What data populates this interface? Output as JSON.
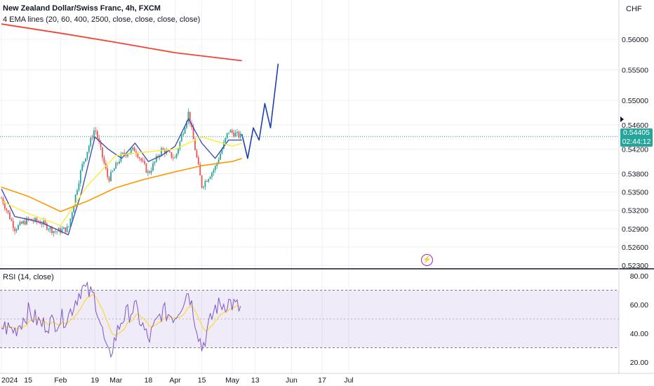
{
  "header": {
    "title": "New Zealand Dollar/Swiss Franc, 4h, FXCM",
    "indicator": "4 EMA lines (20, 60, 400, 2500, close, close, close, close)"
  },
  "currency": "CHF",
  "rsi_title": "RSI (14, close)",
  "price_tag": {
    "price": "0.54405",
    "countdown": "02:44:12",
    "color": "#26a69a"
  },
  "colors": {
    "up": "#26a69a",
    "down": "#ef5350",
    "ema20": "#3f51b5",
    "ema60": "#ffeb3b",
    "ema400": "#ff9800",
    "ema2500": "#f44336",
    "projection": "#1e40af",
    "rsi": "#7e57c2"
  },
  "icon": "lightning-icon",
  "chart_data": [
    {
      "type": "line",
      "name": "price-panel",
      "y_ticks": [
        "0.56000",
        "0.55500",
        "0.55000",
        "0.54600",
        "0.54200",
        "0.53800",
        "0.53500",
        "0.53200",
        "0.52900",
        "0.52600",
        "0.52300"
      ],
      "x_ticks": [
        "2024",
        "15",
        "Feb",
        "19",
        "Mar",
        "18",
        "Apr",
        "15",
        "May",
        "13",
        "Jun",
        "17",
        "Jul"
      ],
      "series": [
        {
          "name": "EMA 20",
          "x": [
            "2024-01-01",
            "2024-01-08",
            "2024-01-15",
            "2024-01-22",
            "2024-01-29",
            "2024-02-05",
            "2024-02-12",
            "2024-02-19",
            "2024-02-26",
            "2024-03-04",
            "2024-03-11",
            "2024-03-18",
            "2024-03-25",
            "2024-04-01",
            "2024-04-08",
            "2024-04-15",
            "2024-04-22",
            "2024-04-29",
            "2024-05-06"
          ],
          "values": [
            0.5355,
            0.531,
            0.5305,
            0.53,
            0.529,
            0.528,
            0.535,
            0.544,
            0.542,
            0.5405,
            0.543,
            0.54,
            0.541,
            0.5425,
            0.547,
            0.543,
            0.5405,
            0.5435,
            0.5435
          ]
        },
        {
          "name": "EMA 60",
          "x": [
            "2024-01-01",
            "2024-01-15",
            "2024-02-01",
            "2024-02-15",
            "2024-03-01",
            "2024-03-15",
            "2024-04-01",
            "2024-04-15",
            "2024-05-01",
            "2024-05-06"
          ],
          "values": [
            0.5335,
            0.5315,
            0.5295,
            0.536,
            0.541,
            0.5415,
            0.542,
            0.544,
            0.5425,
            0.543
          ]
        },
        {
          "name": "EMA 400",
          "x": [
            "2024-01-01",
            "2024-01-15",
            "2024-02-01",
            "2024-02-15",
            "2024-03-01",
            "2024-03-15",
            "2024-04-01",
            "2024-04-15",
            "2024-05-01",
            "2024-05-06"
          ],
          "values": [
            0.5358,
            0.5343,
            0.5318,
            0.5335,
            0.5357,
            0.537,
            0.5383,
            0.5393,
            0.54,
            0.5405
          ]
        },
        {
          "name": "EMA 2500",
          "x": [
            "2024-01-01",
            "2024-02-01",
            "2024-03-01",
            "2024-04-01",
            "2024-05-06"
          ],
          "values": [
            0.5625,
            0.561,
            0.5595,
            0.5578,
            0.5565
          ]
        },
        {
          "name": "Projection",
          "x": [
            "2024-05-06",
            "2024-05-09",
            "2024-05-12",
            "2024-05-15",
            "2024-05-18",
            "2024-05-21",
            "2024-05-25"
          ],
          "values": [
            0.5445,
            0.5405,
            0.5455,
            0.5435,
            0.5495,
            0.5455,
            0.556
          ]
        }
      ],
      "candles_approx": {
        "x": [
          "2024-01-01",
          "2024-01-08",
          "2024-01-15",
          "2024-01-22",
          "2024-01-29",
          "2024-02-05",
          "2024-02-12",
          "2024-02-19",
          "2024-02-26",
          "2024-03-04",
          "2024-03-11",
          "2024-03-18",
          "2024-03-25",
          "2024-04-01",
          "2024-04-08",
          "2024-04-15",
          "2024-04-22",
          "2024-04-29",
          "2024-05-06"
        ],
        "close": [
          0.534,
          0.529,
          0.5305,
          0.53,
          0.5285,
          0.529,
          0.539,
          0.5455,
          0.537,
          0.541,
          0.542,
          0.538,
          0.542,
          0.5405,
          0.548,
          0.536,
          0.539,
          0.545,
          0.544
        ]
      },
      "last_price": 0.54405
    },
    {
      "type": "line",
      "name": "rsi-panel",
      "y_ticks": [
        "80.00",
        "60.00",
        "40.00",
        "20.00"
      ],
      "bands": [
        30,
        70
      ],
      "series": [
        {
          "name": "RSI",
          "x": [
            "2024-01-01",
            "2024-01-08",
            "2024-01-15",
            "2024-01-22",
            "2024-01-29",
            "2024-02-05",
            "2024-02-12",
            "2024-02-19",
            "2024-02-26",
            "2024-03-04",
            "2024-03-11",
            "2024-03-18",
            "2024-03-25",
            "2024-04-01",
            "2024-04-08",
            "2024-04-15",
            "2024-04-22",
            "2024-04-29",
            "2024-05-06"
          ],
          "values": [
            45,
            42,
            55,
            46,
            48,
            52,
            72,
            65,
            22,
            50,
            58,
            35,
            55,
            52,
            70,
            30,
            58,
            62,
            56
          ]
        }
      ]
    }
  ]
}
